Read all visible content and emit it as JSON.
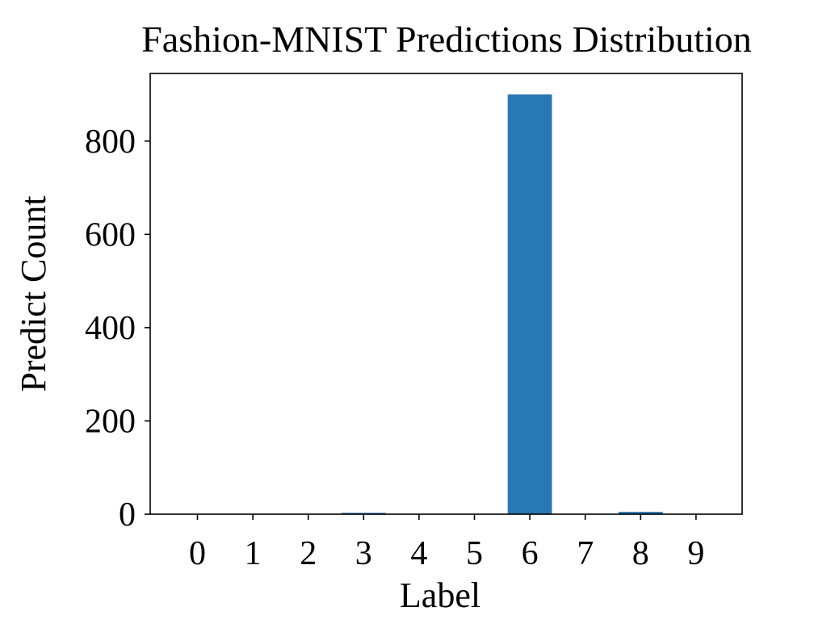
{
  "chart_data": {
    "type": "bar",
    "title": "Fashion-MNIST Predictions Distribution",
    "xlabel": "Label",
    "ylabel": "Predict Count",
    "categories": [
      "0",
      "1",
      "2",
      "3",
      "4",
      "5",
      "6",
      "7",
      "8",
      "9"
    ],
    "values": [
      0,
      0,
      0,
      3,
      0,
      0,
      900,
      0,
      5,
      0
    ],
    "ylim": [
      0,
      945
    ],
    "yticks": [
      0,
      200,
      400,
      600,
      800
    ],
    "grid": false,
    "bar_color": "#2878b4"
  }
}
